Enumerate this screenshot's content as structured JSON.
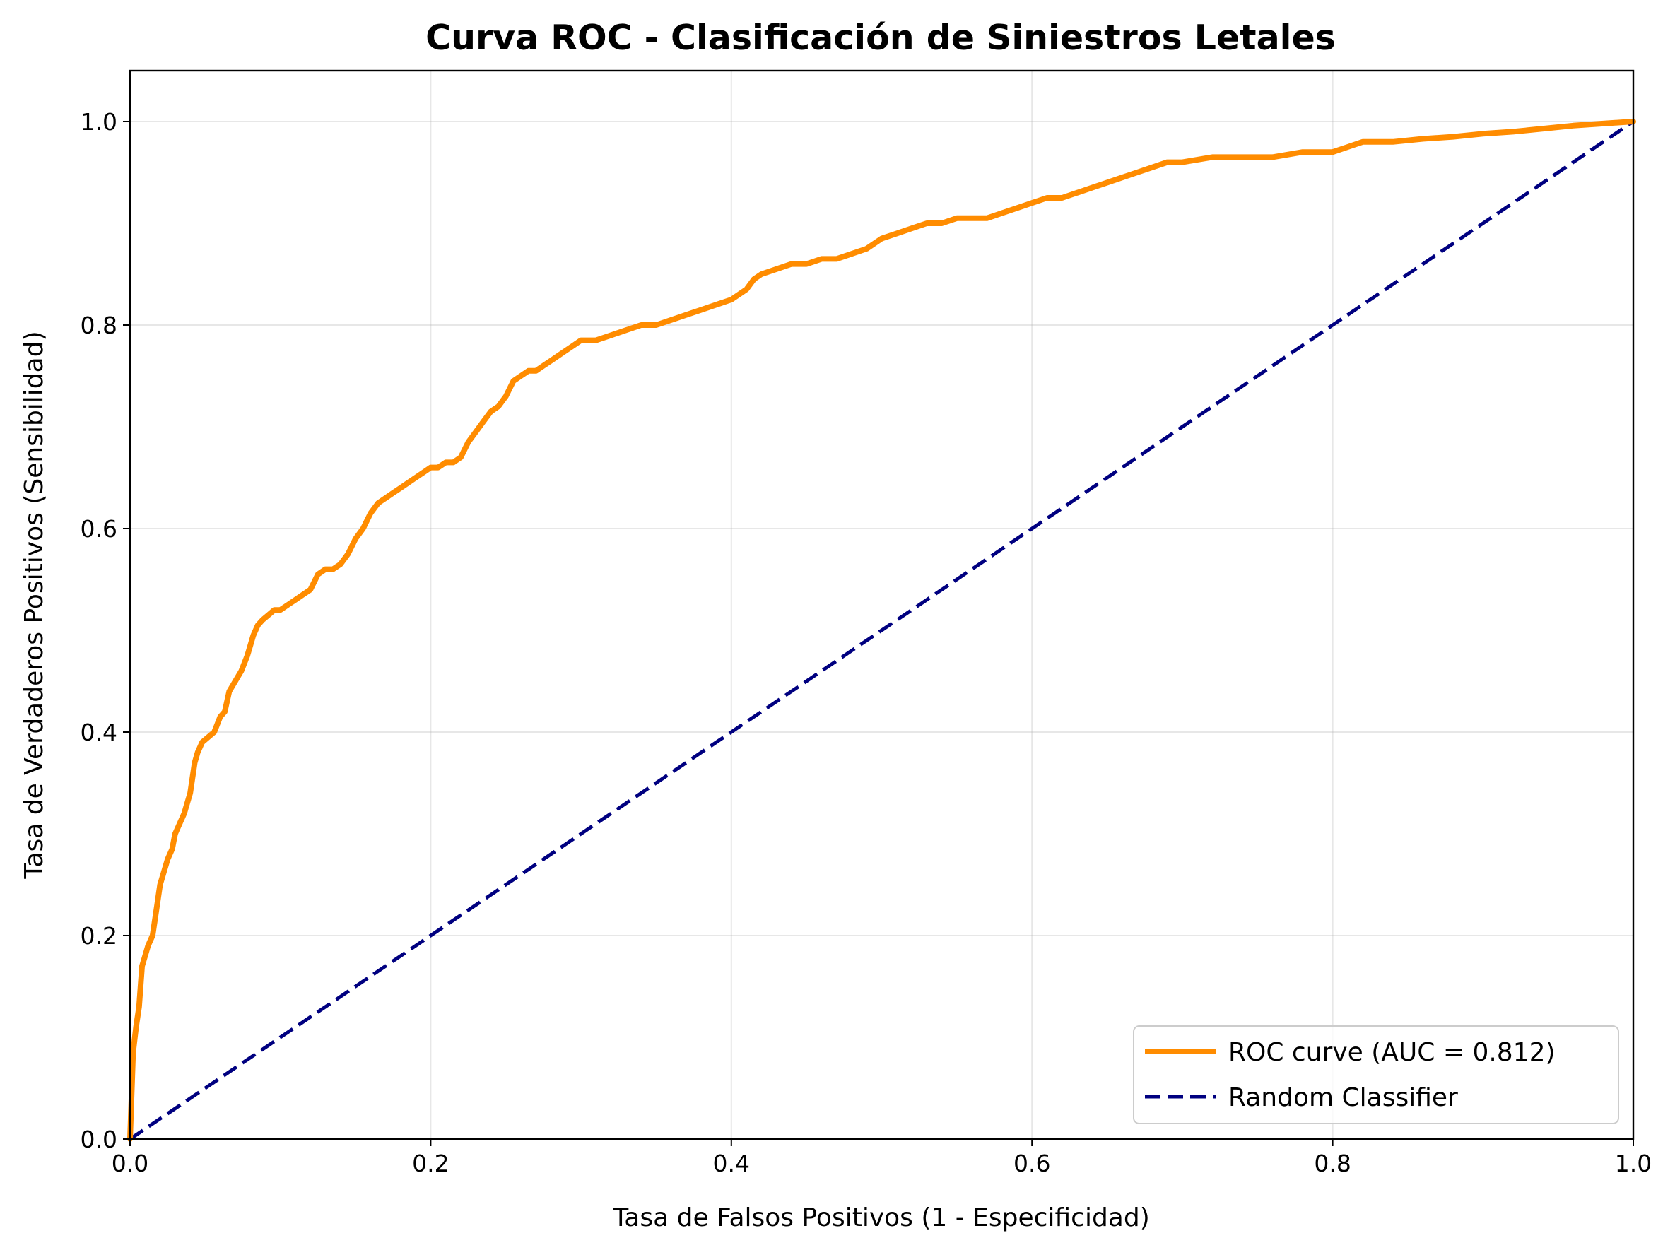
{
  "chart_data": {
    "type": "line",
    "title": "Curva ROC - Clasificación de Siniestros Letales",
    "xlabel": "Tasa de Falsos Positivos (1 - Especificidad)",
    "ylabel": "Tasa de Verdaderos Positivos (Sensibilidad)",
    "xlim": [
      0,
      1
    ],
    "ylim": [
      0,
      1.05
    ],
    "xticks": [
      0.0,
      0.2,
      0.4,
      0.6,
      0.8,
      1.0
    ],
    "yticks": [
      0.0,
      0.2,
      0.4,
      0.6,
      0.8,
      1.0
    ],
    "xtick_labels": [
      "0.0",
      "0.2",
      "0.4",
      "0.6",
      "0.8",
      "1.0"
    ],
    "ytick_labels": [
      "0.0",
      "0.2",
      "0.4",
      "0.6",
      "0.8",
      "1.0"
    ],
    "grid": true,
    "legend_position": "lower-right",
    "series": [
      {
        "name": "ROC curve (AUC = 0.812)",
        "color": "#ff8c00",
        "style": "solid",
        "x": [
          0,
          0.002,
          0.004,
          0.006,
          0.008,
          0.01,
          0.012,
          0.015,
          0.018,
          0.02,
          0.022,
          0.025,
          0.028,
          0.03,
          0.033,
          0.036,
          0.04,
          0.043,
          0.045,
          0.048,
          0.052,
          0.056,
          0.06,
          0.063,
          0.066,
          0.07,
          0.074,
          0.078,
          0.082,
          0.085,
          0.088,
          0.092,
          0.096,
          0.1,
          0.105,
          0.11,
          0.115,
          0.12,
          0.125,
          0.13,
          0.135,
          0.14,
          0.145,
          0.15,
          0.155,
          0.16,
          0.165,
          0.17,
          0.175,
          0.18,
          0.185,
          0.19,
          0.195,
          0.2,
          0.205,
          0.21,
          0.215,
          0.22,
          0.225,
          0.23,
          0.235,
          0.24,
          0.245,
          0.25,
          0.255,
          0.26,
          0.265,
          0.27,
          0.275,
          0.28,
          0.285,
          0.29,
          0.295,
          0.3,
          0.31,
          0.32,
          0.33,
          0.34,
          0.35,
          0.36,
          0.37,
          0.38,
          0.39,
          0.4,
          0.405,
          0.41,
          0.415,
          0.42,
          0.43,
          0.44,
          0.45,
          0.46,
          0.47,
          0.48,
          0.49,
          0.5,
          0.51,
          0.52,
          0.53,
          0.54,
          0.55,
          0.56,
          0.57,
          0.58,
          0.59,
          0.6,
          0.61,
          0.62,
          0.63,
          0.64,
          0.65,
          0.66,
          0.67,
          0.68,
          0.69,
          0.7,
          0.72,
          0.74,
          0.76,
          0.78,
          0.8,
          0.81,
          0.82,
          0.84,
          0.86,
          0.88,
          0.9,
          0.92,
          0.94,
          0.96,
          0.98,
          1.0
        ],
        "y": [
          0,
          0.085,
          0.11,
          0.13,
          0.17,
          0.18,
          0.19,
          0.2,
          0.23,
          0.25,
          0.26,
          0.275,
          0.285,
          0.3,
          0.31,
          0.32,
          0.34,
          0.37,
          0.38,
          0.39,
          0.395,
          0.4,
          0.415,
          0.42,
          0.44,
          0.45,
          0.46,
          0.475,
          0.495,
          0.505,
          0.51,
          0.515,
          0.52,
          0.52,
          0.525,
          0.53,
          0.535,
          0.54,
          0.555,
          0.56,
          0.56,
          0.565,
          0.575,
          0.59,
          0.6,
          0.615,
          0.625,
          0.63,
          0.635,
          0.64,
          0.645,
          0.65,
          0.655,
          0.66,
          0.66,
          0.665,
          0.665,
          0.67,
          0.685,
          0.695,
          0.705,
          0.715,
          0.72,
          0.73,
          0.745,
          0.75,
          0.755,
          0.755,
          0.76,
          0.765,
          0.77,
          0.775,
          0.78,
          0.785,
          0.785,
          0.79,
          0.795,
          0.8,
          0.8,
          0.805,
          0.81,
          0.815,
          0.82,
          0.825,
          0.83,
          0.835,
          0.845,
          0.85,
          0.855,
          0.86,
          0.86,
          0.865,
          0.865,
          0.87,
          0.875,
          0.885,
          0.89,
          0.895,
          0.9,
          0.9,
          0.905,
          0.905,
          0.905,
          0.91,
          0.915,
          0.92,
          0.925,
          0.925,
          0.93,
          0.935,
          0.94,
          0.945,
          0.95,
          0.955,
          0.96,
          0.96,
          0.965,
          0.965,
          0.965,
          0.97,
          0.97,
          0.975,
          0.98,
          0.98,
          0.983,
          0.985,
          0.988,
          0.99,
          0.993,
          0.996,
          0.998,
          1.0
        ]
      },
      {
        "name": "Random Classifier",
        "color": "#000080",
        "style": "dashed",
        "x": [
          0,
          1
        ],
        "y": [
          0,
          1
        ]
      }
    ]
  }
}
